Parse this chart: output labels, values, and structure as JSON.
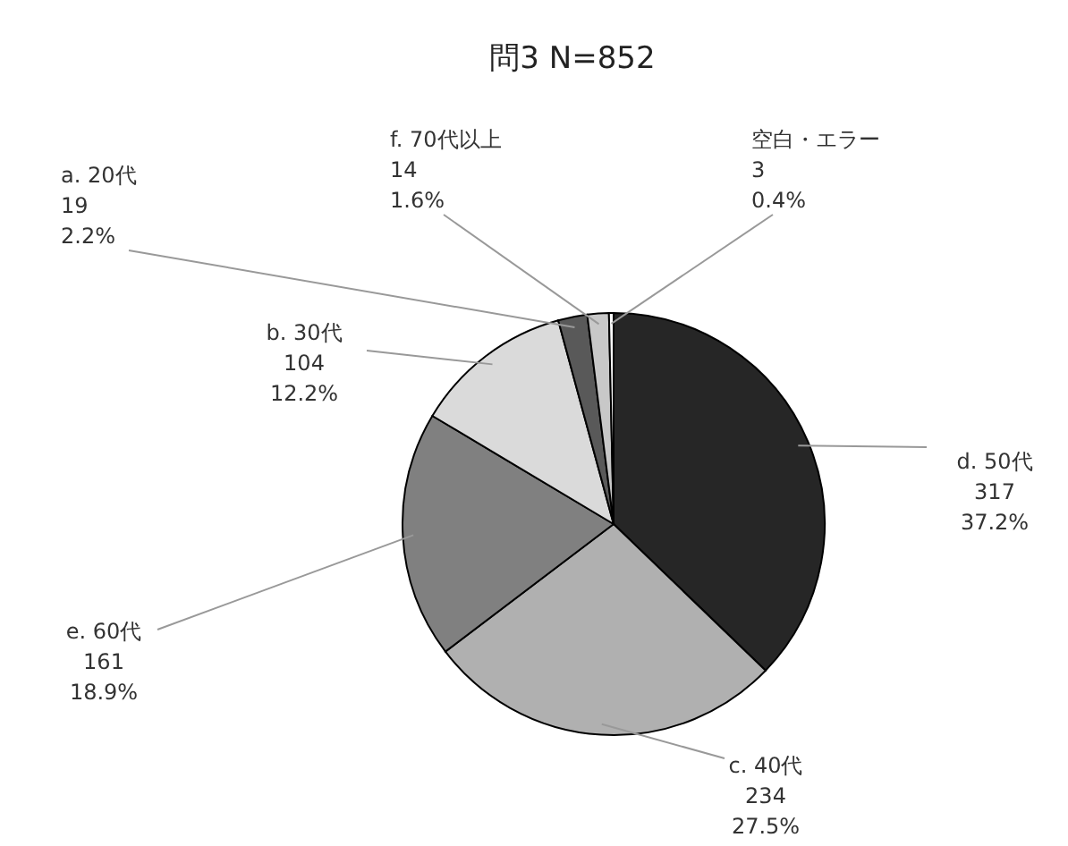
{
  "chart_data": {
    "type": "pie",
    "title": "問3 N=852",
    "categories": [
      "d. 50代",
      "c. 40代",
      "e. 60代",
      "b. 30代",
      "a. 20代",
      "f. 70代以上",
      "空白・エラー"
    ],
    "values": [
      317,
      234,
      161,
      104,
      19,
      14,
      3
    ],
    "colors": [
      "#262626",
      "#b0b0b0",
      "#808080",
      "#dadada",
      "#595959",
      "#c8c8c8",
      "#ffffff"
    ],
    "value_labels": [
      "317\n37.2%",
      "234\n27.5%",
      "161\n18.9%",
      "104\n12.2%",
      "19\n2.2%",
      "14\n1.6%",
      "3\n0.4%"
    ]
  }
}
